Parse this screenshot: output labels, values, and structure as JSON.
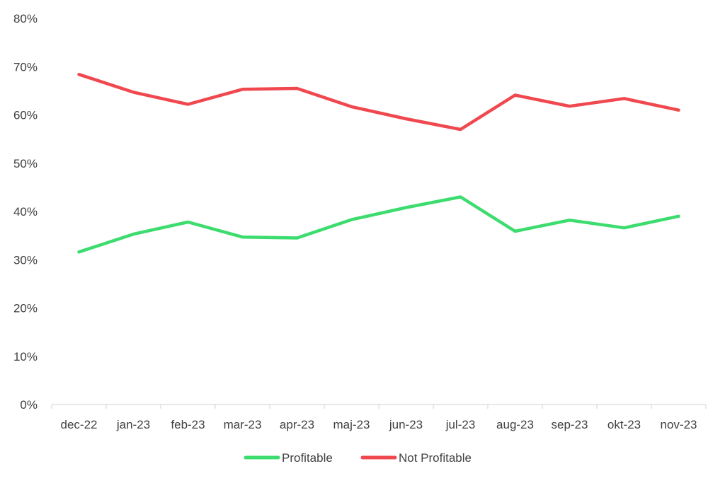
{
  "chart_data": {
    "type": "line",
    "categories": [
      "dec-22",
      "jan-23",
      "feb-23",
      "mar-23",
      "apr-23",
      "maj-23",
      "jun-23",
      "jul-23",
      "aug-23",
      "sep-23",
      "okt-23",
      "nov-23"
    ],
    "series": [
      {
        "name": "Profitable",
        "color": "#3ddc6f",
        "values": [
          31.6,
          35.3,
          37.8,
          34.7,
          34.5,
          38.3,
          40.8,
          43.0,
          35.9,
          38.2,
          36.6,
          39.0
        ]
      },
      {
        "name": "Not Profitable",
        "color": "#f0484e",
        "values": [
          68.4,
          64.7,
          62.2,
          65.3,
          65.5,
          61.7,
          59.2,
          57.0,
          64.1,
          61.8,
          63.4,
          61.0
        ]
      }
    ],
    "y_ticks": [
      "0%",
      "10%",
      "20%",
      "30%",
      "40%",
      "50%",
      "60%",
      "70%",
      "80%"
    ],
    "ylim": [
      0,
      80
    ],
    "grid": false,
    "legend_position": "bottom"
  }
}
